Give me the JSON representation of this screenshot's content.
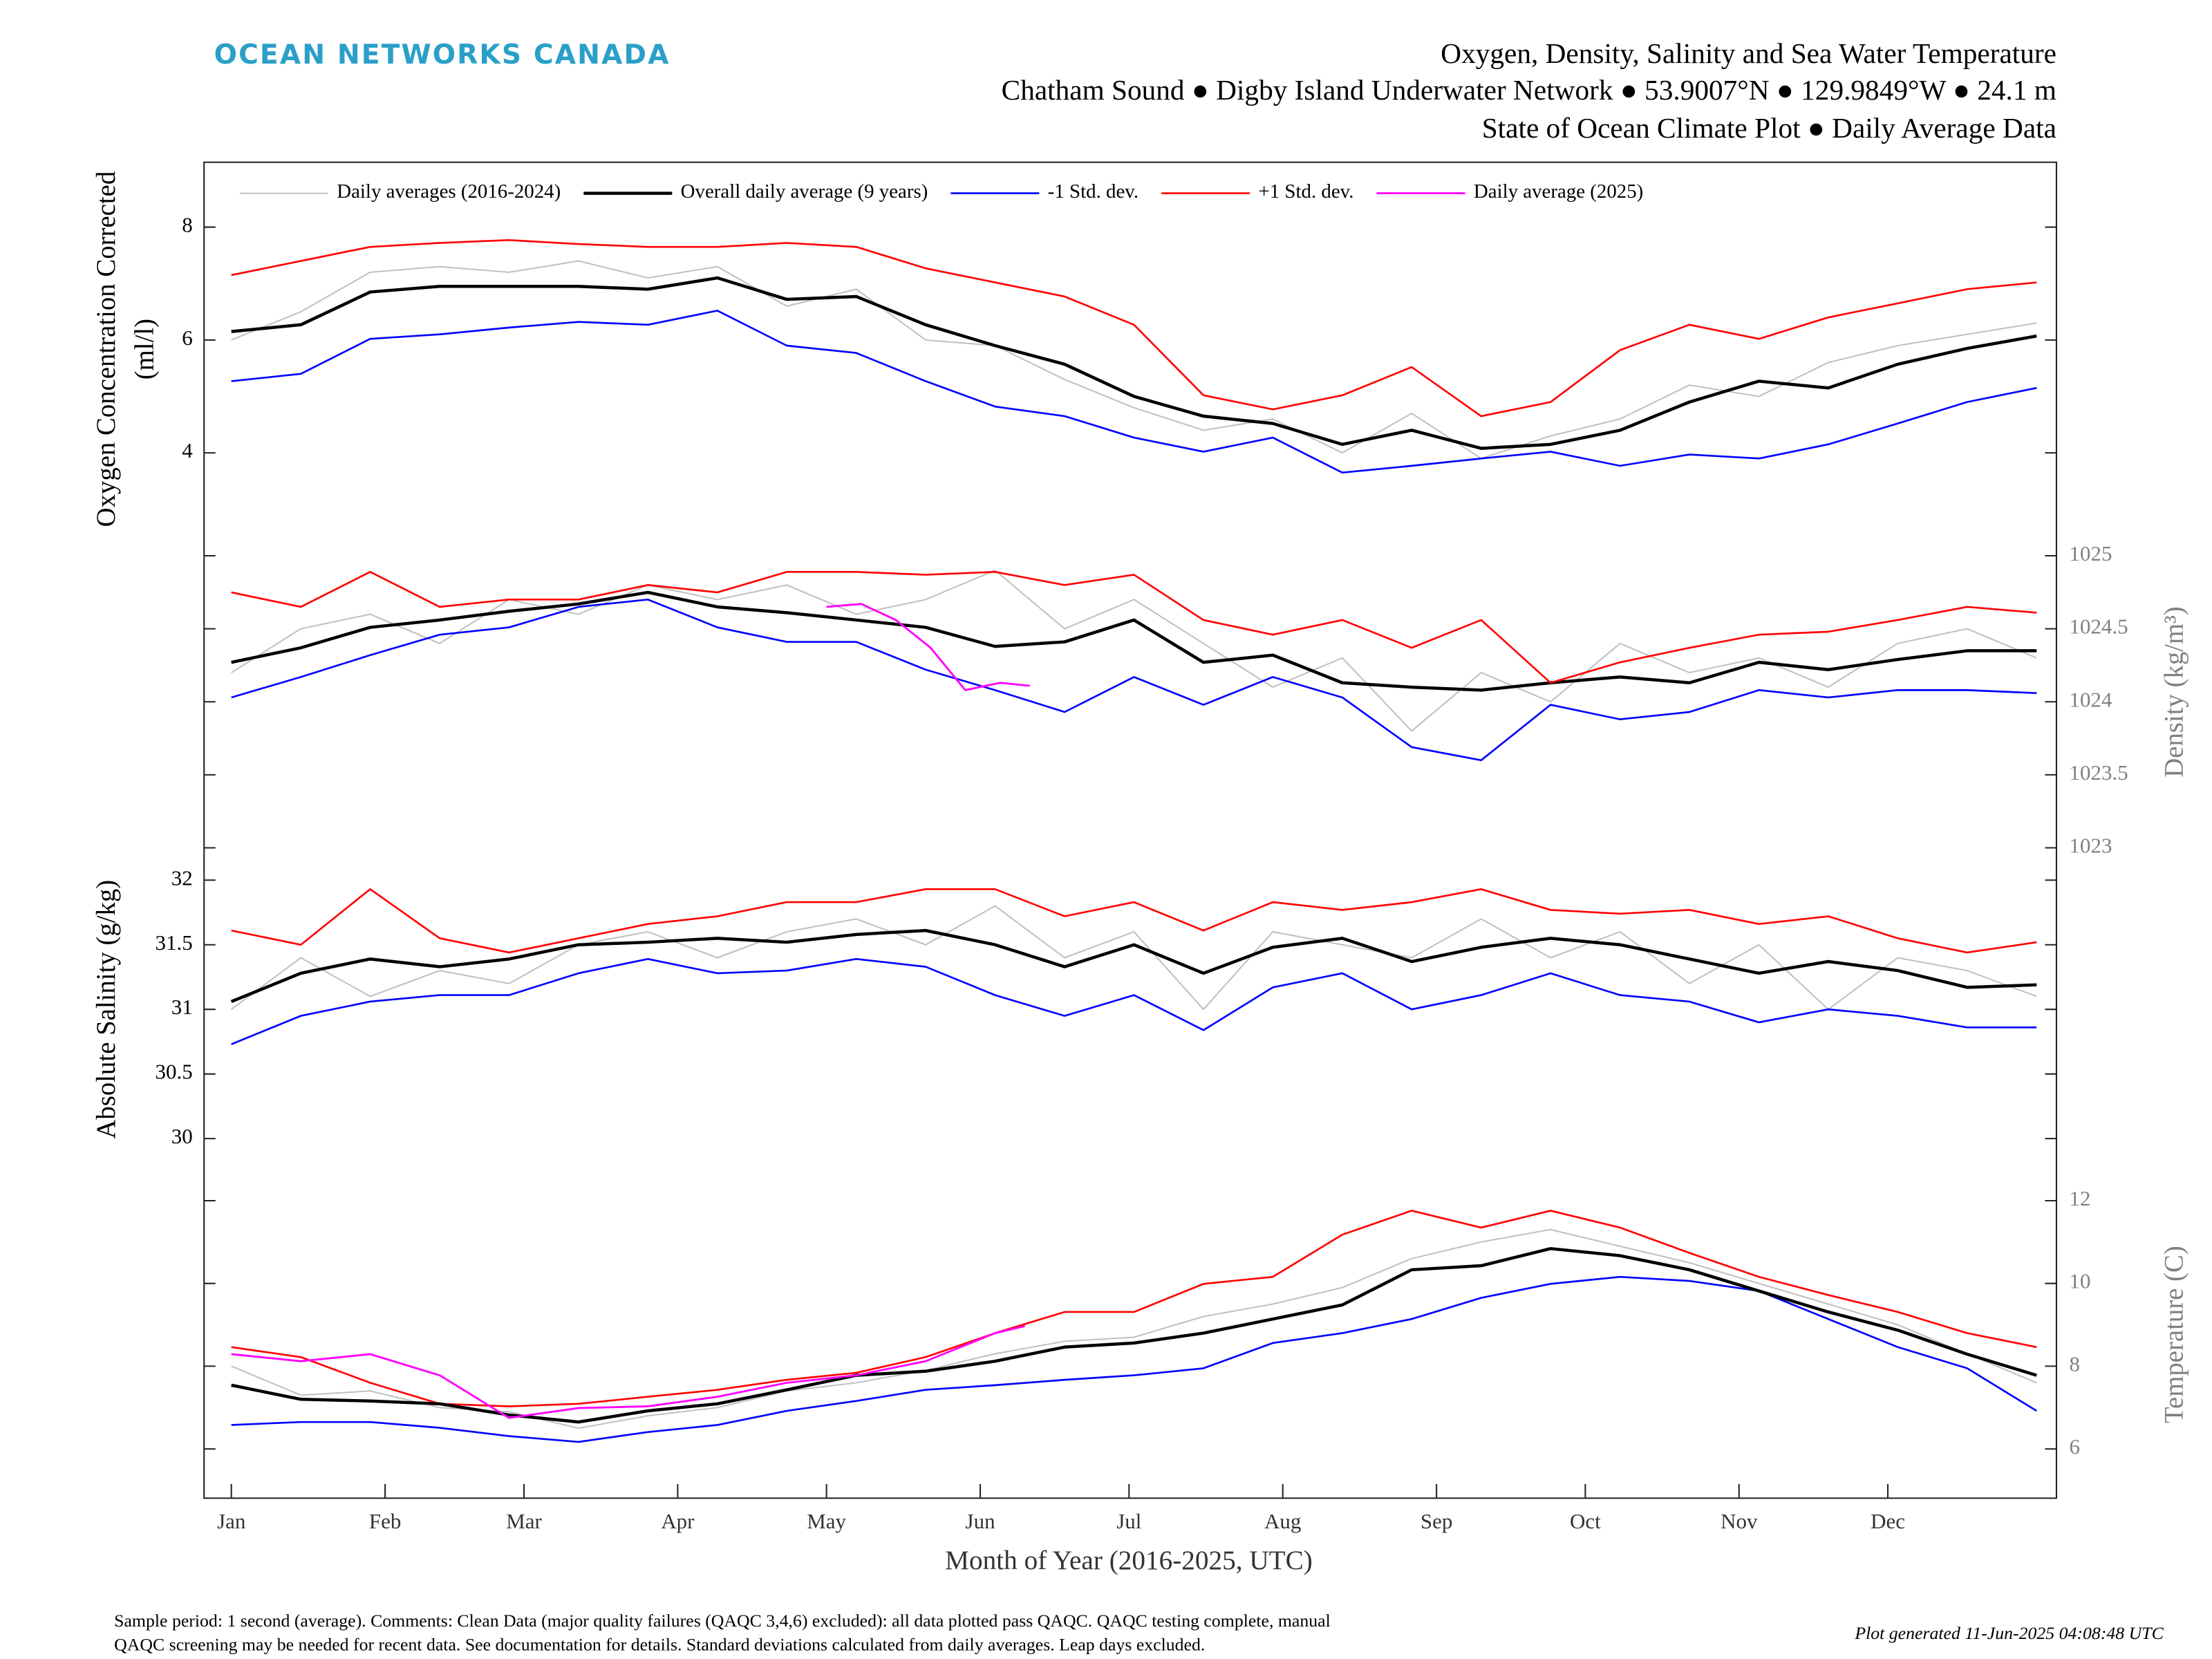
{
  "header": {
    "logo": "OCEAN NETWORKS CANADA",
    "title_lines": [
      "Oxygen, Density, Salinity and Sea Water Temperature",
      "Chatham Sound ● Digby Island Underwater Network ● 53.9007°N ● 129.9849°W ● 24.1 m",
      "State of Ocean Climate Plot ● Daily Average Data"
    ]
  },
  "footer": {
    "note_lines": [
      "Sample period: 1 second (average). Comments: Clean Data (major quality failures (QAQC 3,4,6) excluded): all data plotted pass QAQC. QAQC testing complete, manual",
      "QAQC screening may be needed for recent data. See documentation for details. Standard deviations calculated from daily averages. Leap days excluded."
    ],
    "generated": "Plot generated 11-Jun-2025 04:08:48 UTC"
  },
  "chart_data": [
    {
      "type": "line",
      "ylabel": [
        "Oxygen Concentration Corrected",
        "(ml/l)"
      ],
      "yaxis_side": "left",
      "xlim": [
        -4.5,
        369
      ],
      "ylim": [
        2.525,
        9.15
      ],
      "yticks": [
        4,
        6,
        8
      ],
      "x": [
        1,
        15,
        29,
        43,
        57,
        71,
        85,
        99,
        113,
        127,
        141,
        155,
        169,
        183,
        197,
        211,
        225,
        239,
        253,
        267,
        281,
        295,
        309,
        323,
        337,
        351,
        365
      ],
      "series": [
        {
          "color": "#c0c0c0",
          "values": [
            6.0,
            6.5,
            7.2,
            7.3,
            7.2,
            7.4,
            7.1,
            7.3,
            6.6,
            6.9,
            6.0,
            5.9,
            5.3,
            4.8,
            4.4,
            4.6,
            4.0,
            4.7,
            3.9,
            4.3,
            4.6,
            5.2,
            5.0,
            5.6,
            5.9,
            6.1,
            6.3
          ]
        },
        {
          "color": "#0000ff",
          "values": [
            5.27,
            5.4,
            6.02,
            6.1,
            6.22,
            6.32,
            6.27,
            6.52,
            5.9,
            5.77,
            5.27,
            4.82,
            4.65,
            4.27,
            4.02,
            4.27,
            3.65,
            3.77,
            3.9,
            4.02,
            3.77,
            3.97,
            3.9,
            4.15,
            4.52,
            4.9,
            5.15
          ]
        },
        {
          "color": "#ff0000",
          "values": [
            7.15,
            7.4,
            7.65,
            7.72,
            7.77,
            7.7,
            7.65,
            7.65,
            7.72,
            7.65,
            7.27,
            7.02,
            6.77,
            6.27,
            5.02,
            4.77,
            5.02,
            5.52,
            4.65,
            4.9,
            5.82,
            6.27,
            6.02,
            6.4,
            6.65,
            6.9,
            7.02
          ]
        },
        {
          "color": "#000000",
          "values": [
            6.15,
            6.27,
            6.85,
            6.95,
            6.95,
            6.95,
            6.9,
            7.1,
            6.72,
            6.77,
            6.27,
            5.9,
            5.57,
            5.0,
            4.65,
            4.52,
            4.15,
            4.4,
            4.08,
            4.15,
            4.4,
            4.9,
            5.27,
            5.15,
            5.57,
            5.85,
            6.07
          ]
        }
      ]
    },
    {
      "type": "line",
      "ylabel": "Density (kg/m³)",
      "yaxis_side": "right",
      "xlim": [
        -4.5,
        369
      ],
      "ylim": [
        1023,
        1025.135
      ],
      "yticks": [
        1023,
        1023.5,
        1024,
        1024.5,
        1025
      ],
      "x": [
        1,
        15,
        29,
        43,
        57,
        71,
        85,
        99,
        113,
        127,
        141,
        155,
        169,
        183,
        197,
        211,
        225,
        239,
        253,
        267,
        281,
        295,
        309,
        323,
        337,
        351,
        365
      ],
      "series": [
        {
          "name": "Daily averages (2016-2024)",
          "color": "#c0c0c0",
          "values": [
            1024.2,
            1024.5,
            1024.6,
            1024.4,
            1024.7,
            1024.6,
            1024.8,
            1024.7,
            1024.8,
            1024.6,
            1024.7,
            1024.9,
            1024.5,
            1024.7,
            1024.4,
            1024.1,
            1024.3,
            1023.8,
            1024.2,
            1024.0,
            1024.4,
            1024.2,
            1024.3,
            1024.1,
            1024.4,
            1024.5,
            1024.3
          ]
        },
        {
          "name": "Overall daily average (9 years)",
          "color": "#000000",
          "values": [
            1024.27,
            1024.37,
            1024.51,
            1024.56,
            1024.62,
            1024.67,
            1024.75,
            1024.65,
            1024.61,
            1024.56,
            1024.51,
            1024.38,
            1024.41,
            1024.56,
            1024.27,
            1024.32,
            1024.13,
            1024.1,
            1024.08,
            1024.13,
            1024.17,
            1024.13,
            1024.27,
            1024.22,
            1024.29,
            1024.35,
            1024.35
          ]
        },
        {
          "name": "-1 Std. dev.",
          "color": "#0000ff",
          "values": [
            1024.03,
            1024.17,
            1024.32,
            1024.46,
            1024.51,
            1024.65,
            1024.7,
            1024.51,
            1024.41,
            1024.41,
            1024.22,
            1024.08,
            1023.93,
            1024.17,
            1023.98,
            1024.17,
            1024.03,
            1023.69,
            1023.6,
            1023.98,
            1023.88,
            1023.93,
            1024.08,
            1024.03,
            1024.08,
            1024.08,
            1024.06
          ]
        },
        {
          "name": "+1 Std. dev.",
          "color": "#ff0000",
          "values": [
            1024.75,
            1024.65,
            1024.89,
            1024.65,
            1024.7,
            1024.7,
            1024.8,
            1024.75,
            1024.89,
            1024.89,
            1024.87,
            1024.89,
            1024.8,
            1024.87,
            1024.56,
            1024.46,
            1024.56,
            1024.37,
            1024.56,
            1024.13,
            1024.27,
            1024.37,
            1024.46,
            1024.48,
            1024.56,
            1024.65,
            1024.61
          ]
        },
        {
          "name": "Daily average (2025)",
          "color": "#ff00ff",
          "x": [
            121,
            128,
            135,
            142,
            149,
            156,
            162
          ],
          "values": [
            1024.65,
            1024.67,
            1024.56,
            1024.37,
            1024.08,
            1024.13,
            1024.11
          ]
        }
      ]
    },
    {
      "type": "line",
      "ylabel": "Absolute Salinity (g/kg)",
      "yaxis_side": "left",
      "xlim": [
        -4.5,
        369
      ],
      "ylim": [
        29.75,
        32.25
      ],
      "yticks": [
        30,
        30.5,
        31,
        31.5,
        32
      ],
      "x": [
        1,
        15,
        29,
        43,
        57,
        71,
        85,
        99,
        113,
        127,
        141,
        155,
        169,
        183,
        197,
        211,
        225,
        239,
        253,
        267,
        281,
        295,
        309,
        323,
        337,
        351,
        365
      ],
      "series": [
        {
          "color": "#c0c0c0",
          "values": [
            31.0,
            31.4,
            31.1,
            31.3,
            31.2,
            31.5,
            31.6,
            31.4,
            31.6,
            31.7,
            31.5,
            31.8,
            31.4,
            31.6,
            31.0,
            31.6,
            31.5,
            31.4,
            31.7,
            31.4,
            31.6,
            31.2,
            31.5,
            31.0,
            31.4,
            31.3,
            31.1
          ]
        },
        {
          "color": "#0000ff",
          "values": [
            30.73,
            30.95,
            31.06,
            31.11,
            31.11,
            31.28,
            31.39,
            31.28,
            31.3,
            31.39,
            31.33,
            31.11,
            30.95,
            31.11,
            30.84,
            31.17,
            31.28,
            31.0,
            31.11,
            31.28,
            31.11,
            31.06,
            30.9,
            31.0,
            30.95,
            30.86,
            30.86
          ]
        },
        {
          "color": "#ff0000",
          "values": [
            31.61,
            31.5,
            31.93,
            31.55,
            31.44,
            31.55,
            31.66,
            31.72,
            31.83,
            31.83,
            31.93,
            31.93,
            31.72,
            31.83,
            31.61,
            31.83,
            31.77,
            31.83,
            31.93,
            31.77,
            31.74,
            31.77,
            31.66,
            31.72,
            31.55,
            31.44,
            31.52
          ]
        },
        {
          "color": "#000000",
          "values": [
            31.06,
            31.28,
            31.39,
            31.33,
            31.39,
            31.5,
            31.52,
            31.55,
            31.52,
            31.58,
            31.61,
            31.5,
            31.33,
            31.5,
            31.28,
            31.48,
            31.55,
            31.37,
            31.48,
            31.55,
            31.5,
            31.39,
            31.28,
            31.37,
            31.3,
            31.17,
            31.19
          ]
        }
      ]
    },
    {
      "type": "line",
      "ylabel": "Temperature (C)",
      "yaxis_side": "right",
      "xlabel": "Month of Year (2016-2025, UTC)",
      "xlim": [
        -4.5,
        369
      ],
      "xticks": [
        {
          "value": 1,
          "label": "Jan"
        },
        {
          "value": 32,
          "label": "Feb"
        },
        {
          "value": 60,
          "label": "Mar"
        },
        {
          "value": 91,
          "label": "Apr"
        },
        {
          "value": 121,
          "label": "May"
        },
        {
          "value": 152,
          "label": "Jun"
        },
        {
          "value": 182,
          "label": "Jul"
        },
        {
          "value": 213,
          "label": "Aug"
        },
        {
          "value": 244,
          "label": "Sep"
        },
        {
          "value": 274,
          "label": "Oct"
        },
        {
          "value": 305,
          "label": "Nov"
        },
        {
          "value": 335,
          "label": "Dec"
        }
      ],
      "ylim": [
        4.81,
        12.72
      ],
      "yticks": [
        6,
        8,
        10,
        12
      ],
      "x": [
        1,
        15,
        29,
        43,
        57,
        71,
        85,
        99,
        113,
        127,
        141,
        155,
        169,
        183,
        197,
        211,
        225,
        239,
        253,
        267,
        281,
        295,
        309,
        323,
        337,
        351,
        365
      ],
      "series": [
        {
          "color": "#c0c0c0",
          "values": [
            8.0,
            7.3,
            7.4,
            7.0,
            6.9,
            6.5,
            6.8,
            7.0,
            7.4,
            7.6,
            7.9,
            8.3,
            8.6,
            8.7,
            9.2,
            9.5,
            9.9,
            10.6,
            11.0,
            11.3,
            10.9,
            10.5,
            10.0,
            9.5,
            9.0,
            8.3,
            7.6
          ]
        },
        {
          "color": "#0000ff",
          "values": [
            6.58,
            6.65,
            6.65,
            6.51,
            6.31,
            6.17,
            6.41,
            6.58,
            6.92,
            7.16,
            7.43,
            7.54,
            7.67,
            7.78,
            7.95,
            8.56,
            8.8,
            9.14,
            9.65,
            9.99,
            10.16,
            10.06,
            9.82,
            9.14,
            8.46,
            7.95,
            6.92
          ]
        },
        {
          "color": "#ff0000",
          "values": [
            8.46,
            8.22,
            7.6,
            7.09,
            7.03,
            7.09,
            7.26,
            7.43,
            7.67,
            7.84,
            8.22,
            8.8,
            9.31,
            9.31,
            9.99,
            10.16,
            11.18,
            11.76,
            11.35,
            11.76,
            11.35,
            10.74,
            10.16,
            9.72,
            9.31,
            8.8,
            8.46
          ]
        },
        {
          "color": "#000000",
          "values": [
            7.54,
            7.2,
            7.16,
            7.09,
            6.82,
            6.65,
            6.92,
            7.09,
            7.43,
            7.78,
            7.88,
            8.12,
            8.46,
            8.56,
            8.8,
            9.14,
            9.48,
            10.33,
            10.43,
            10.84,
            10.67,
            10.33,
            9.82,
            9.31,
            8.87,
            8.29,
            7.78
          ]
        },
        {
          "color": "#ff00ff",
          "x": [
            1,
            15,
            29,
            43,
            57,
            71,
            85,
            99,
            113,
            127,
            141,
            155,
            161
          ],
          "values": [
            8.29,
            8.12,
            8.29,
            7.78,
            6.75,
            6.99,
            7.03,
            7.26,
            7.6,
            7.78,
            8.12,
            8.8,
            8.97
          ]
        }
      ]
    }
  ]
}
